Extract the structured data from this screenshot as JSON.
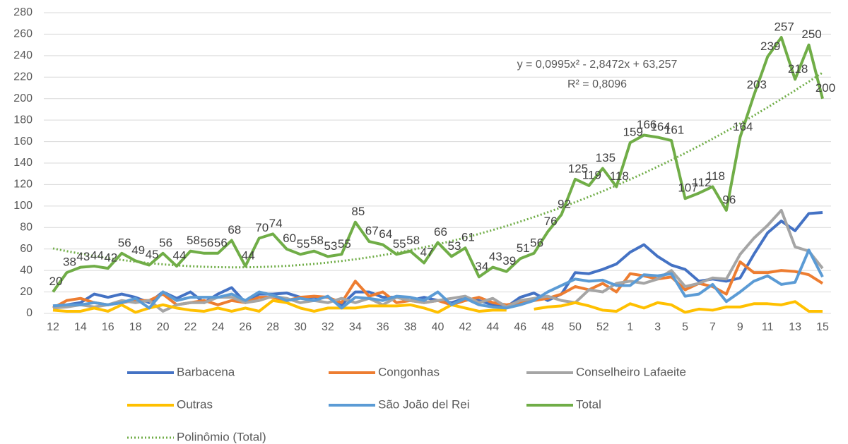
{
  "chart_data": {
    "type": "line",
    "categories": [
      "12",
      null,
      "14",
      null,
      "16",
      null,
      "18",
      null,
      "20",
      null,
      "22",
      null,
      "24",
      null,
      "26",
      null,
      "28",
      null,
      "30",
      null,
      "32",
      null,
      "34",
      null,
      "36",
      null,
      "38",
      null,
      "40",
      null,
      "42",
      null,
      "44",
      null,
      "46",
      null,
      "48",
      null,
      "50",
      null,
      "52",
      null,
      "1",
      null,
      "3",
      null,
      "5",
      null,
      "7",
      null,
      "9",
      null,
      "11",
      null,
      "13",
      null,
      "15"
    ],
    "ylim": [
      0,
      280
    ],
    "yticks": [
      0,
      20,
      40,
      60,
      80,
      100,
      120,
      140,
      160,
      180,
      200,
      220,
      240,
      260,
      280
    ],
    "grid": true,
    "series": [
      {
        "name": "Barbacena",
        "color": "#4472c4",
        "values": [
          7,
          8,
          10,
          18,
          15,
          18,
          15,
          10,
          20,
          14,
          20,
          10,
          18,
          24,
          10,
          18,
          18,
          19,
          15,
          15,
          15,
          8,
          20,
          20,
          15,
          15,
          12,
          15,
          12,
          10,
          14,
          12,
          8,
          6,
          15,
          19,
          12,
          18,
          38,
          37,
          41,
          46,
          57,
          64,
          53,
          45,
          41,
          30,
          32,
          30,
          33,
          55,
          75,
          86,
          77,
          93,
          94
        ]
      },
      {
        "name": "Congonhas",
        "color": "#ed7d31",
        "values": [
          5,
          12,
          14,
          10,
          8,
          10,
          12,
          12,
          18,
          8,
          10,
          12,
          8,
          12,
          10,
          15,
          15,
          12,
          15,
          16,
          15,
          10,
          30,
          16,
          20,
          10,
          12,
          10,
          12,
          8,
          12,
          15,
          10,
          8,
          10,
          12,
          14,
          18,
          25,
          22,
          28,
          20,
          37,
          35,
          32,
          34,
          22,
          28,
          25,
          18,
          48,
          38,
          38,
          40,
          39,
          36,
          28
        ]
      },
      {
        "name": "Conselheiro Lafaeite",
        "color": "#a5a5a5",
        "values": [
          5,
          6,
          8,
          6,
          8,
          12,
          10,
          12,
          2,
          8,
          10,
          10,
          15,
          15,
          10,
          12,
          16,
          14,
          10,
          12,
          10,
          14,
          10,
          14,
          8,
          15,
          12,
          10,
          12,
          14,
          16,
          10,
          14,
          6,
          12,
          14,
          16,
          12,
          10,
          22,
          20,
          28,
          30,
          28,
          32,
          40,
          25,
          28,
          33,
          32,
          55,
          70,
          82,
          96,
          62,
          58,
          42
        ]
      },
      {
        "name": "Outras",
        "color": "#ffc000",
        "values": [
          3,
          2,
          2,
          5,
          2,
          8,
          1,
          5,
          8,
          5,
          3,
          2,
          5,
          2,
          5,
          2,
          12,
          10,
          5,
          2,
          5,
          5,
          5,
          7,
          7,
          7,
          8,
          5,
          1,
          8,
          5,
          2,
          3,
          3,
          null,
          4,
          6,
          7,
          10,
          7,
          3,
          2,
          9,
          5,
          10,
          8,
          1,
          4,
          3,
          6,
          6,
          9,
          9,
          8,
          11,
          2,
          2
        ]
      },
      {
        "name": "São João del Rei",
        "color": "#5b9bd5",
        "values": [
          7,
          8,
          8,
          10,
          8,
          10,
          14,
          5,
          20,
          12,
          15,
          15,
          15,
          18,
          12,
          20,
          17,
          12,
          14,
          12,
          16,
          5,
          15,
          14,
          12,
          16,
          15,
          12,
          20,
          8,
          14,
          8,
          6,
          5,
          8,
          12,
          20,
          26,
          32,
          30,
          31,
          26,
          26,
          36,
          35,
          37,
          16,
          18,
          27,
          11,
          20,
          30,
          35,
          27,
          29,
          59,
          34
        ]
      },
      {
        "name": "Total",
        "color": "#70ad47",
        "data_labels": true,
        "values": [
          20,
          38,
          43,
          44,
          42,
          56,
          49,
          45,
          56,
          44,
          58,
          56,
          56,
          68,
          44,
          70,
          74,
          60,
          55,
          58,
          53,
          55,
          85,
          67,
          64,
          55,
          58,
          47,
          66,
          53,
          61,
          34,
          43,
          39,
          51,
          56,
          76,
          92,
          125,
          119,
          135,
          118,
          159,
          166,
          164,
          161,
          107,
          112,
          118,
          96,
          164,
          203,
          239,
          257,
          218,
          250,
          200
        ]
      }
    ],
    "trendline": {
      "name": "Polinômio (Total)",
      "color": "#70ad47",
      "equation": "y = 0,0995x² - 2,8472x + 63,257",
      "r_squared": "R² = 0,8096",
      "coefficients": [
        0.0995,
        -2.8472,
        63.257
      ]
    }
  }
}
